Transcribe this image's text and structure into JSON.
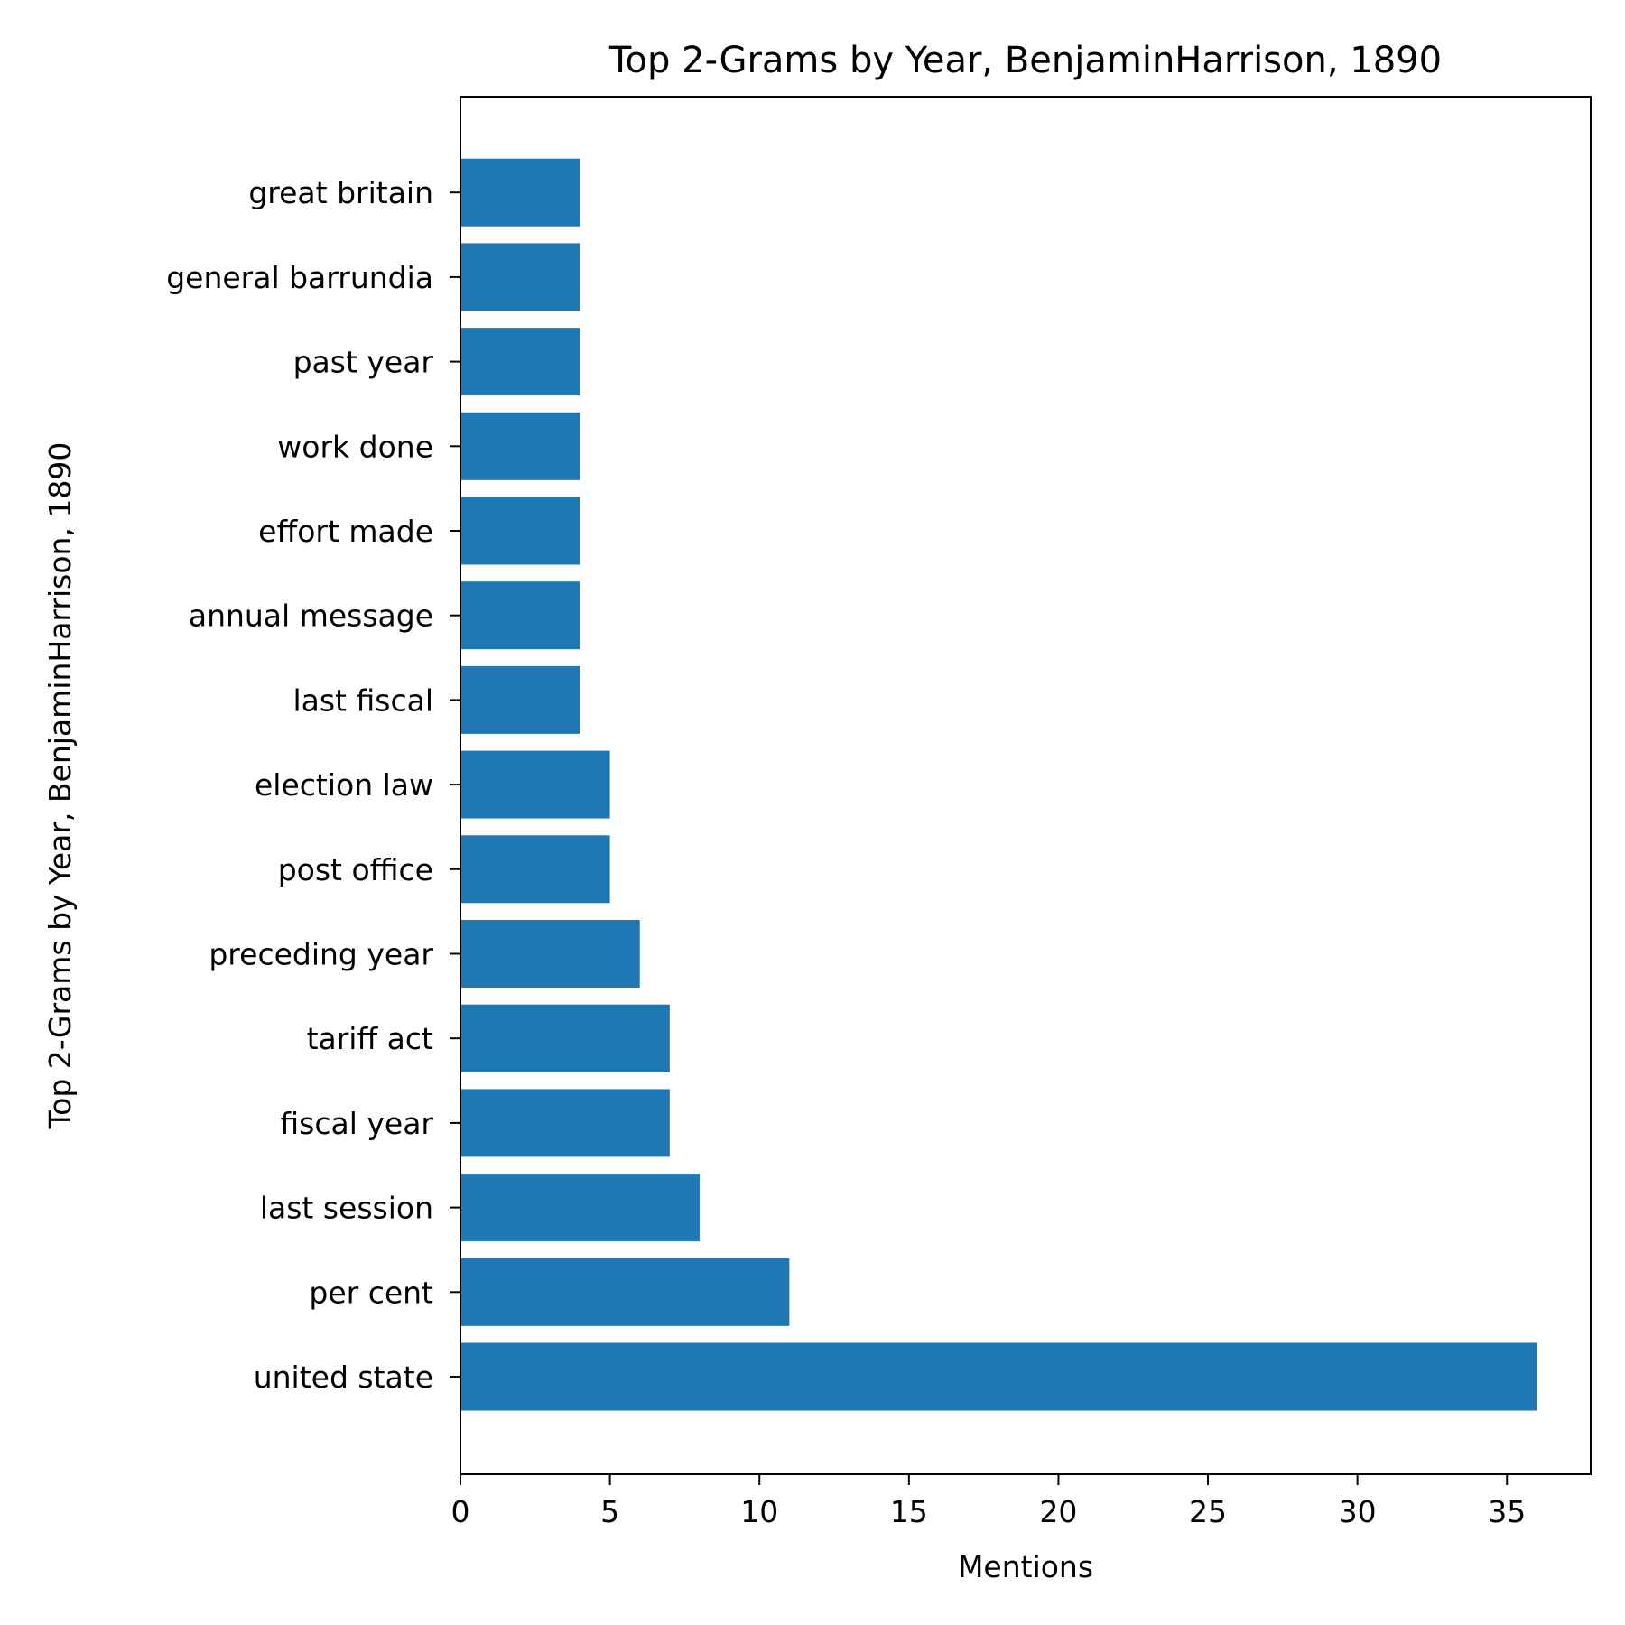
{
  "chart_data": {
    "type": "bar",
    "orientation": "horizontal",
    "title": "Top 2-Grams by Year, BenjaminHarrison, 1890",
    "xlabel": "Mentions",
    "ylabel": "Top 2-Grams by Year, BenjaminHarrison, 1890",
    "categories": [
      "united state",
      "per cent",
      "last session",
      "fiscal year",
      "tariff act",
      "preceding year",
      "post office",
      "election law",
      "last fiscal",
      "annual message",
      "effort made",
      "work done",
      "past year",
      "general barrundia",
      "great britain"
    ],
    "values": [
      36,
      11,
      8,
      7,
      7,
      6,
      5,
      5,
      4,
      4,
      4,
      4,
      4,
      4,
      4
    ],
    "xlim": [
      0,
      37.8
    ],
    "xticks": [
      0,
      5,
      10,
      15,
      20,
      25,
      30,
      35
    ],
    "grid": false,
    "bar_color": "#1f77b4"
  }
}
